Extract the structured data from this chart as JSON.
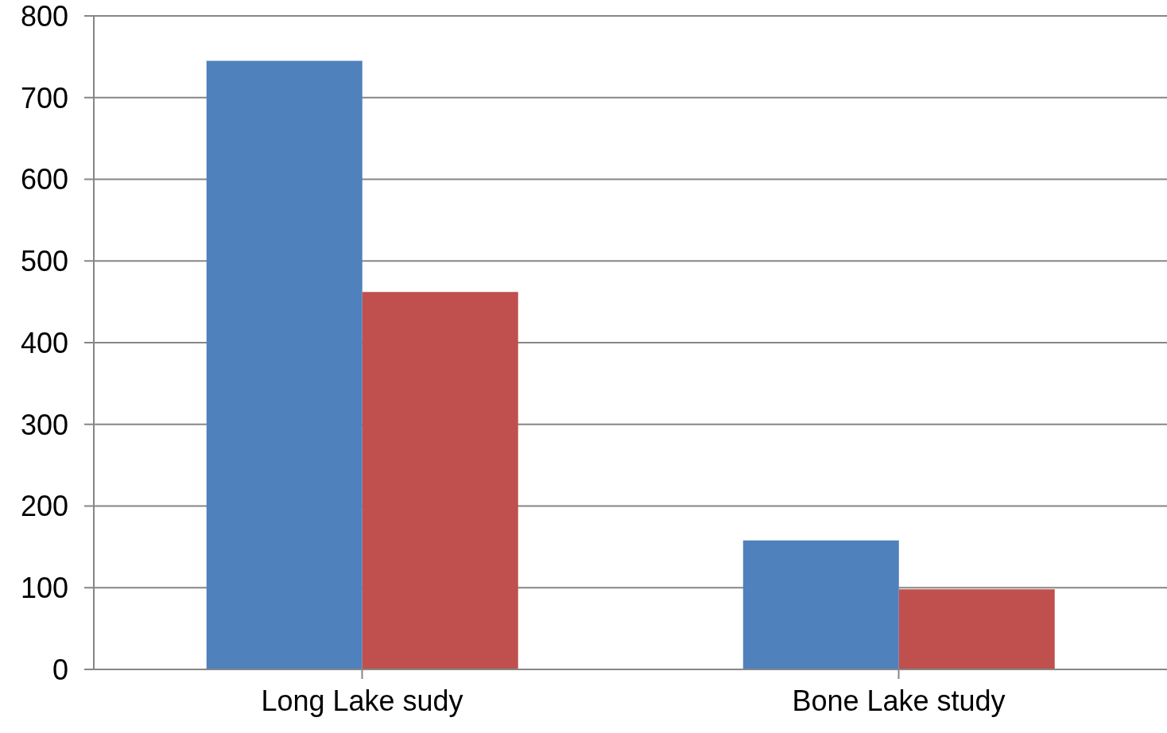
{
  "chart_data": {
    "type": "bar",
    "categories": [
      "Long Lake sudy",
      "Bone Lake study"
    ],
    "series": [
      {
        "color": "#4f81bd",
        "values": [
          745,
          158
        ]
      },
      {
        "color": "#c0504d",
        "values": [
          462,
          98
        ]
      }
    ],
    "ylim": [
      0,
      800
    ],
    "yticks": [
      0,
      100,
      200,
      300,
      400,
      500,
      600,
      700,
      800
    ],
    "grid": "y",
    "legend": false
  }
}
